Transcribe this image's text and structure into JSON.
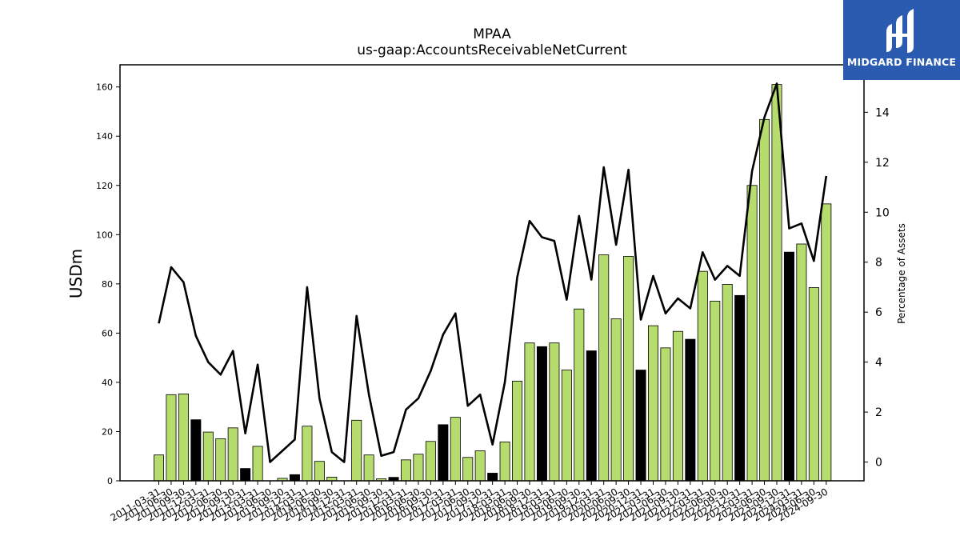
{
  "title": "MPAA",
  "subtitle": "us-gaap:AccountsReceivableNetCurrent",
  "logo": {
    "text": "MIDGARD FINANCE"
  },
  "colors": {
    "bar_default": "#b5dc6c",
    "bar_highlight": "#000000",
    "line": "#000000"
  },
  "chart_data": {
    "type": "bar",
    "title": "MPAA",
    "subtitle": "us-gaap:AccountsReceivableNetCurrent",
    "ylabel": "USDm",
    "y2label": "Percentage of Assets",
    "ylim": [
      0,
      169
    ],
    "y2lim": [
      -0.75,
      15.9
    ],
    "yticks": [
      0,
      20,
      40,
      60,
      80,
      100,
      120,
      140,
      160
    ],
    "y2ticks": [
      0,
      2,
      4,
      6,
      8,
      10,
      12,
      14
    ],
    "categories": [
      "2011-03-31",
      "2011-06-30",
      "2011-09-30",
      "2011-12-31",
      "2012-03-31",
      "2012-06-30",
      "2012-09-30",
      "2012-12-31",
      "2013-03-31",
      "2013-06-30",
      "2013-09-30",
      "2013-12-31",
      "2014-03-31",
      "2014-06-30",
      "2014-09-30",
      "2014-12-31",
      "2015-03-31",
      "2015-06-30",
      "2015-09-30",
      "2015-12-31",
      "2016-03-31",
      "2016-06-30",
      "2016-09-30",
      "2016-12-31",
      "2017-03-31",
      "2017-06-30",
      "2017-09-30",
      "2017-12-31",
      "2018-03-31",
      "2018-06-30",
      "2018-09-30",
      "2018-12-31",
      "2019-03-31",
      "2019-06-30",
      "2019-09-30",
      "2019-12-31",
      "2020-03-31",
      "2020-06-30",
      "2020-09-30",
      "2020-12-31",
      "2021-03-31",
      "2021-06-30",
      "2021-09-30",
      "2021-12-31",
      "2022-03-31",
      "2022-06-30",
      "2022-09-30",
      "2022-12-31",
      "2023-03-31",
      "2023-06-30",
      "2023-09-30",
      "2023-12-31",
      "2024-03-31",
      "2024-06-30",
      "2024-09-30"
    ],
    "series": [
      {
        "name": "",
        "kind": "bar",
        "axis": "left",
        "values": [
          10.5,
          35,
          35.3,
          24.8,
          19.8,
          17.1,
          21.5,
          5,
          14,
          0,
          1,
          2.5,
          22.2,
          7.9,
          1.5,
          0,
          24.6,
          10.5,
          0.8,
          1.4,
          8.5,
          10.8,
          16,
          22.8,
          25.8,
          9.5,
          12.2,
          3.1,
          15.8,
          40.5,
          56,
          54.5,
          56,
          45,
          69.8,
          52.8,
          91.8,
          65.8,
          91.2,
          45,
          63,
          54,
          60.7,
          57.5,
          85.1,
          73,
          79.8,
          75.3,
          120,
          146.8,
          161,
          92.9,
          96.2,
          78.5,
          112.5
        ],
        "highlight": [
          false,
          false,
          false,
          true,
          false,
          false,
          false,
          true,
          false,
          false,
          false,
          true,
          false,
          false,
          false,
          true,
          false,
          false,
          false,
          true,
          false,
          false,
          false,
          true,
          false,
          false,
          false,
          true,
          false,
          false,
          false,
          true,
          false,
          false,
          false,
          true,
          false,
          false,
          false,
          true,
          false,
          false,
          false,
          true,
          false,
          false,
          false,
          true,
          false,
          false,
          false,
          true,
          false,
          false,
          false
        ]
      },
      {
        "name": "",
        "kind": "line",
        "axis": "right",
        "values": [
          5.55,
          7.8,
          7.2,
          5.05,
          4.0,
          3.5,
          4.45,
          1.15,
          3.9,
          0.0,
          0.45,
          0.9,
          7.0,
          2.55,
          0.4,
          0.0,
          5.85,
          2.7,
          0.25,
          0.4,
          2.1,
          2.55,
          3.65,
          5.1,
          5.95,
          2.25,
          2.7,
          0.7,
          3.2,
          7.4,
          9.65,
          9.0,
          8.85,
          6.5,
          9.85,
          7.3,
          11.8,
          8.7,
          11.7,
          5.7,
          7.45,
          5.95,
          6.55,
          6.15,
          8.4,
          7.3,
          7.85,
          7.45,
          11.65,
          13.8,
          15.15,
          9.35,
          9.55,
          8.05,
          11.45
        ]
      }
    ]
  }
}
